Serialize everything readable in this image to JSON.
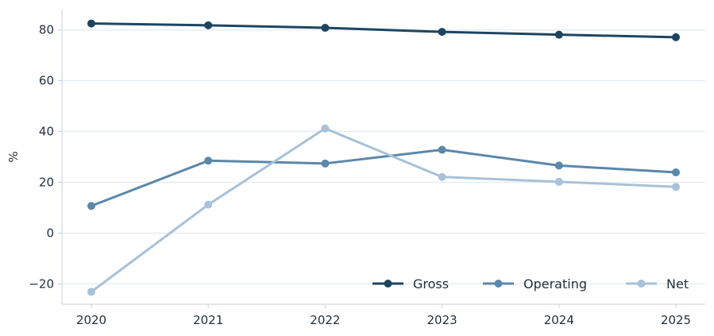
{
  "chart_data": {
    "type": "line",
    "title": "",
    "xlabel": "",
    "ylabel": "%",
    "x": [
      "2020",
      "2021",
      "2022",
      "2023",
      "2024",
      "2025"
    ],
    "ylim": [
      -28,
      88
    ],
    "yticks": [
      -20,
      0,
      20,
      40,
      60,
      80
    ],
    "grid": "horizontal",
    "legend_position": "bottom-right",
    "series": [
      {
        "name": "Gross",
        "color": "#1d4562",
        "values": [
          82.5,
          81.8,
          80.8,
          79.2,
          78.1,
          77.1
        ]
      },
      {
        "name": "Operating",
        "color": "#5b87ab",
        "values": [
          10.7,
          28.5,
          27.4,
          32.8,
          26.6,
          23.9
        ]
      },
      {
        "name": "Net",
        "color": "#a7c2d9",
        "values": [
          -23.1,
          11.2,
          41.2,
          22.1,
          20.2,
          18.2
        ]
      }
    ]
  }
}
